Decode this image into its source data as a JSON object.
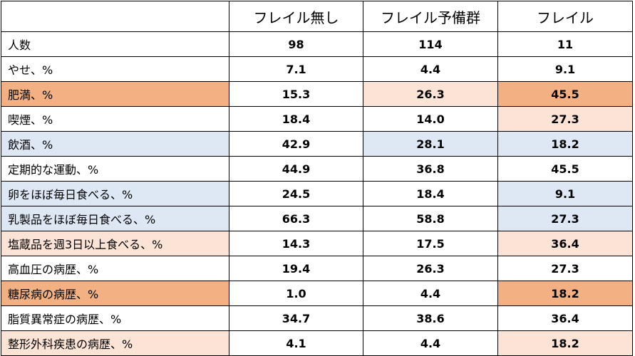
{
  "colors": {
    "dark": "#f3b183",
    "light": "#fbe4d6",
    "blue": "#dee8f4"
  },
  "header": {
    "corner": "",
    "col1": "フレイル無し",
    "col2": "フレイル予備群",
    "col3": "フレイル"
  },
  "rows": [
    {
      "label": "人数",
      "v1": "98",
      "v2": "114",
      "v3": "11",
      "hl": [
        "",
        "",
        "",
        ""
      ]
    },
    {
      "label": "やせ、%",
      "v1": "7.1",
      "v2": "4.4",
      "v3": "9.1",
      "hl": [
        "",
        "",
        "",
        ""
      ]
    },
    {
      "label": "肥満、%",
      "v1": "15.3",
      "v2": "26.3",
      "v3": "45.5",
      "hl": [
        "dark",
        "",
        "light",
        "dark"
      ]
    },
    {
      "label": "喫煙、%",
      "v1": "18.4",
      "v2": "14.0",
      "v3": "27.3",
      "hl": [
        "",
        "",
        "",
        "light"
      ]
    },
    {
      "label": "飲酒、%",
      "v1": "42.9",
      "v2": "28.1",
      "v3": "18.2",
      "hl": [
        "blue",
        "",
        "blue",
        "blue"
      ]
    },
    {
      "label": "定期的な運動、%",
      "v1": "44.9",
      "v2": "36.8",
      "v3": "45.5",
      "hl": [
        "",
        "",
        "",
        ""
      ]
    },
    {
      "label": "卵をほぼ毎日食べる、%",
      "v1": "24.5",
      "v2": "18.4",
      "v3": "9.1",
      "hl": [
        "blue",
        "",
        "",
        "blue"
      ]
    },
    {
      "label": "乳製品をほぼ毎日食べる、%",
      "v1": "66.3",
      "v2": "58.8",
      "v3": "27.3",
      "hl": [
        "blue",
        "",
        "",
        "blue"
      ]
    },
    {
      "label": "塩蔵品を週3日以上食べる、%",
      "v1": "14.3",
      "v2": "17.5",
      "v3": "36.4",
      "hl": [
        "light",
        "",
        "",
        "light"
      ]
    },
    {
      "label": "高血圧の病歴、%",
      "v1": "19.4",
      "v2": "26.3",
      "v3": "27.3",
      "hl": [
        "",
        "",
        "",
        ""
      ]
    },
    {
      "label": "糖尿病の病歴、%",
      "v1": "1.0",
      "v2": "4.4",
      "v3": "18.2",
      "hl": [
        "dark",
        "",
        "",
        "dark"
      ]
    },
    {
      "label": "脂質異常症の病歴、%",
      "v1": "34.7",
      "v2": "38.6",
      "v3": "36.4",
      "hl": [
        "",
        "",
        "",
        ""
      ]
    },
    {
      "label": "整形外科疾患の病歴、%",
      "v1": "4.1",
      "v2": "4.4",
      "v3": "18.2",
      "hl": [
        "light",
        "",
        "",
        "light"
      ]
    }
  ]
}
